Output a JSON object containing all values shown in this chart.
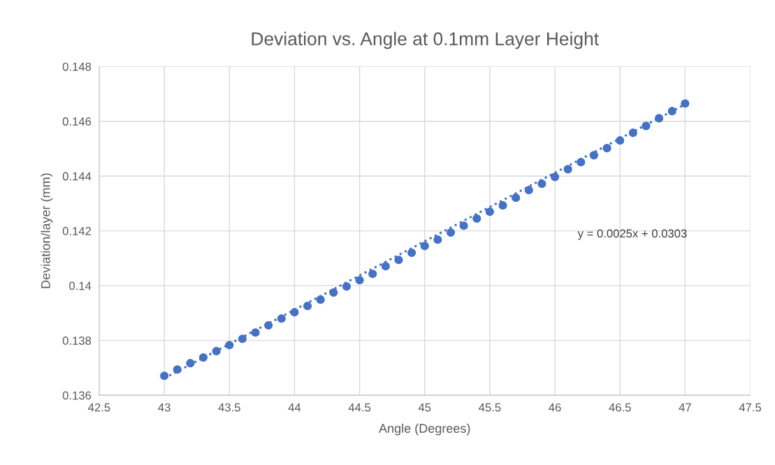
{
  "chart_data": {
    "type": "scatter",
    "title": "Deviation vs. Angle at 0.1mm Layer Height",
    "xlabel": "Angle (Degrees)",
    "ylabel": "Deviation/layer (mm)",
    "x": [
      43,
      43.1,
      43.2,
      43.3,
      43.4,
      43.5,
      43.6,
      43.7,
      43.8,
      43.9,
      44,
      44.1,
      44.2,
      44.3,
      44.4,
      44.5,
      44.6,
      44.7,
      44.8,
      44.9,
      45,
      45.1,
      45.2,
      45.3,
      45.4,
      45.5,
      45.6,
      45.7,
      45.8,
      45.9,
      46,
      46.1,
      46.2,
      46.3,
      46.4,
      46.5,
      46.6,
      46.7,
      46.8,
      46.9,
      47
    ],
    "series": [
      {
        "color": "#4472c4",
        "marker": "circle",
        "values": [
          0.13671,
          0.13694,
          0.13717,
          0.13738,
          0.13761,
          0.13783,
          0.13806,
          0.13829,
          0.13855,
          0.1388,
          0.13903,
          0.13926,
          0.13949,
          0.13975,
          0.13997,
          0.1402,
          0.14043,
          0.14071,
          0.14094,
          0.1412,
          0.14145,
          0.14168,
          0.14194,
          0.14219,
          0.14245,
          0.1427,
          0.14293,
          0.14321,
          0.14349,
          0.14372,
          0.14397,
          0.14425,
          0.14451,
          0.14476,
          0.14502,
          0.1453,
          0.14558,
          0.14583,
          0.14611,
          0.14637,
          0.14665
        ]
      },
      {
        "type": "line",
        "color": "#4472c4",
        "line_style": "dotted",
        "marker": "none",
        "x": [
          43,
          47
        ],
        "values": [
          0.13662,
          0.14662
        ]
      }
    ],
    "annotations": [
      "y = 0.0025x + 0.0303"
    ],
    "xlim": [
      42.5,
      47.5
    ],
    "xticks": [
      42.5,
      43,
      43.5,
      44,
      44.5,
      45,
      45.5,
      46,
      46.5,
      47,
      47.5
    ],
    "ylim": [
      0.136,
      0.148
    ],
    "yticks": [
      0.136,
      0.138,
      0.14,
      0.142,
      0.144,
      0.146,
      0.148
    ],
    "grid": true,
    "legend": false
  }
}
